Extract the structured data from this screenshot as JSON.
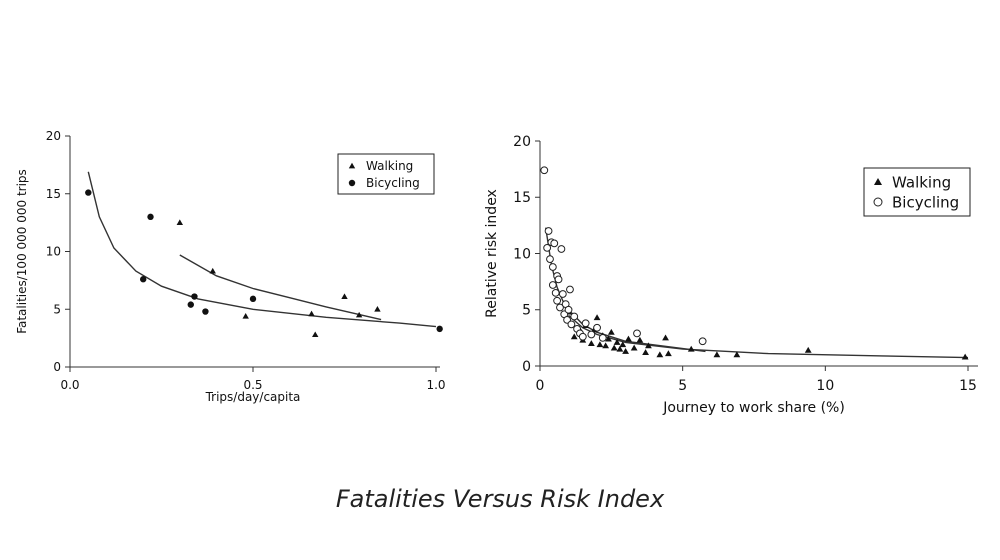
{
  "caption": "Fatalities Versus Risk Index",
  "chart_data": [
    {
      "type": "scatter",
      "xlabel": "Trips/day/capita",
      "ylabel": "Fatalities/100 000 000 trips",
      "xlim": [
        0.0,
        1.0
      ],
      "ylim": [
        0,
        20
      ],
      "xticks": [
        "0.0",
        "0.5",
        "1.0"
      ],
      "yticks": [
        "0",
        "5",
        "10",
        "15",
        "20"
      ],
      "legend": {
        "position": "top-right",
        "entries": [
          "Walking",
          "Bicycling"
        ]
      },
      "series": [
        {
          "name": "Walking",
          "marker": "triangle-filled",
          "x": [
            0.3,
            0.39,
            0.48,
            0.66,
            0.67,
            0.75,
            0.79,
            0.84
          ],
          "y": [
            12.5,
            8.3,
            4.4,
            4.6,
            2.8,
            6.1,
            4.5,
            5.0
          ]
        },
        {
          "name": "Bicycling",
          "marker": "circle-filled",
          "x": [
            0.05,
            0.2,
            0.22,
            0.33,
            0.34,
            0.37,
            0.5,
            1.01
          ],
          "y": [
            15.1,
            7.6,
            13.0,
            5.4,
            6.1,
            4.8,
            5.9,
            3.3
          ]
        }
      ],
      "fits": [
        {
          "for": "Bicycling",
          "x": [
            0.05,
            0.08,
            0.12,
            0.18,
            0.25,
            0.35,
            0.5,
            0.7,
            0.9,
            1.0
          ],
          "y": [
            16.9,
            13.0,
            10.3,
            8.3,
            7.0,
            5.9,
            5.0,
            4.3,
            3.8,
            3.5
          ]
        },
        {
          "for": "Walking",
          "x": [
            0.3,
            0.4,
            0.5,
            0.6,
            0.7,
            0.85
          ],
          "y": [
            9.7,
            7.9,
            6.8,
            6.0,
            5.2,
            4.1
          ]
        }
      ]
    },
    {
      "type": "scatter",
      "xlabel": "Journey to work share (%)",
      "ylabel": "Relative risk index",
      "xlim": [
        0,
        15
      ],
      "ylim": [
        0,
        20
      ],
      "xticks": [
        "0",
        "5",
        "10",
        "15"
      ],
      "yticks": [
        "0",
        "5",
        "10",
        "15",
        "20"
      ],
      "legend": {
        "position": "top-right",
        "entries": [
          "Walking",
          "Bicycling"
        ]
      },
      "series": [
        {
          "name": "Walking",
          "marker": "triangle-filled",
          "x": [
            1.0,
            1.2,
            1.4,
            1.5,
            1.6,
            1.8,
            1.9,
            2.0,
            2.1,
            2.2,
            2.3,
            2.4,
            2.5,
            2.6,
            2.7,
            2.8,
            2.9,
            3.0,
            3.1,
            3.3,
            3.5,
            3.7,
            3.8,
            4.2,
            4.5,
            4.4,
            5.3,
            6.2,
            6.9,
            9.4,
            14.9
          ],
          "y": [
            4.8,
            2.6,
            3.2,
            2.3,
            3.6,
            2.0,
            3.2,
            4.3,
            1.9,
            2.7,
            1.8,
            2.4,
            3.0,
            1.6,
            2.1,
            1.5,
            1.9,
            1.3,
            2.4,
            1.6,
            2.3,
            1.2,
            1.8,
            1.0,
            1.1,
            2.5,
            1.5,
            1.0,
            1.0,
            1.4,
            0.8
          ]
        },
        {
          "name": "Bicycling",
          "marker": "circle-open",
          "x": [
            0.15,
            0.25,
            0.3,
            0.35,
            0.4,
            0.45,
            0.45,
            0.5,
            0.55,
            0.6,
            0.6,
            0.65,
            0.7,
            0.75,
            0.8,
            0.85,
            0.9,
            0.95,
            1.0,
            1.05,
            1.1,
            1.2,
            1.3,
            1.4,
            1.5,
            1.6,
            1.8,
            2.0,
            2.2,
            3.4,
            5.7
          ],
          "y": [
            17.4,
            10.5,
            12.0,
            9.5,
            11.0,
            8.8,
            7.2,
            10.9,
            6.5,
            8.0,
            5.8,
            7.7,
            5.2,
            10.4,
            6.4,
            4.6,
            5.5,
            4.1,
            5.0,
            6.8,
            3.7,
            4.4,
            3.3,
            2.9,
            2.6,
            3.8,
            2.8,
            3.4,
            2.5,
            2.9,
            2.2
          ]
        }
      ],
      "fits": [
        {
          "for": "Bicycling",
          "x": [
            0.2,
            0.4,
            0.6,
            0.8,
            1.0,
            1.5,
            2.0,
            3.0,
            5.8
          ],
          "y": [
            12.3,
            9.0,
            7.0,
            5.8,
            5.0,
            3.7,
            3.0,
            2.2,
            1.3
          ]
        },
        {
          "for": "Walking",
          "x": [
            1.0,
            1.5,
            2.0,
            3.0,
            5.0,
            8.0,
            12.0,
            15.0
          ],
          "y": [
            4.5,
            3.4,
            2.8,
            2.1,
            1.5,
            1.1,
            0.9,
            0.75
          ]
        }
      ]
    }
  ]
}
